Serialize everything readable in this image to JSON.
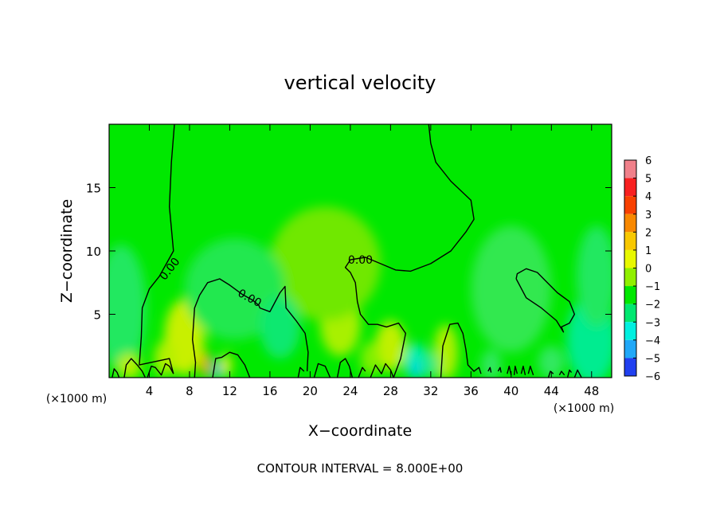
{
  "chart_data": {
    "type": "heatmap",
    "title": "vertical velocity",
    "xlabel": "X−coordinate",
    "ylabel": "Z−coordinate",
    "x_unit_left": "(×1000 m)",
    "x_unit_right": "(×1000 m)",
    "footer": "CONTOUR INTERVAL = 8.000E+00",
    "xlim": [
      0,
      50
    ],
    "ylim": [
      0,
      20
    ],
    "xticks": [
      4,
      8,
      12,
      16,
      20,
      24,
      28,
      32,
      36,
      40,
      44,
      48
    ],
    "yticks": [
      5,
      10,
      15
    ],
    "contour_labels": [
      {
        "text": "0.00",
        "x": 6.0,
        "y": 8.6,
        "angle": -52
      },
      {
        "text": "0.00",
        "x": 14.0,
        "y": 6.3,
        "angle": 28
      },
      {
        "text": "0.00",
        "x": 25.0,
        "y": 9.3,
        "angle": 0
      }
    ],
    "colorbar": {
      "levels": [
        "6",
        "5",
        "4",
        "3",
        "2",
        "1",
        "0",
        "−1",
        "−2",
        "−3",
        "−4",
        "−5",
        "−6"
      ],
      "colors": [
        "#f0808a",
        "#f82020",
        "#f84000",
        "#f88800",
        "#f8c800",
        "#e8f800",
        "#90f000",
        "#00e800",
        "#00e870",
        "#00f0e0",
        "#20a8f8",
        "#2040f0",
        "#1010b0",
        "#8000c0"
      ]
    },
    "blobs": [
      {
        "x": 7.5,
        "y": 3.2,
        "rx": 0.9,
        "ry": 1.8,
        "level": "3",
        "color": "#f88800"
      },
      {
        "x": 7.5,
        "y": 3.2,
        "rx": 2.0,
        "ry": 3.0,
        "level": "1",
        "color": "#c8f000"
      },
      {
        "x": 9.6,
        "y": 1.0,
        "rx": 0.5,
        "ry": 1.0,
        "level": "2",
        "color": "#f8a800"
      },
      {
        "x": 11.6,
        "y": 1.0,
        "rx": 0.6,
        "ry": 0.9,
        "level": "1",
        "color": "#d8f000"
      },
      {
        "x": 23.0,
        "y": 4.2,
        "rx": 2.0,
        "ry": 2.5,
        "level": "1",
        "color": "#a8f000"
      },
      {
        "x": 21.5,
        "y": 9.0,
        "rx": 5.5,
        "ry": 4.5,
        "level": "0.5",
        "color": "#70e800"
      },
      {
        "x": 28.0,
        "y": 2.5,
        "rx": 1.5,
        "ry": 2.0,
        "level": "1",
        "color": "#c0f000"
      },
      {
        "x": 33.5,
        "y": 2.0,
        "rx": 1.2,
        "ry": 2.2,
        "level": "1",
        "color": "#b0f000"
      },
      {
        "x": 12.5,
        "y": 7.0,
        "rx": 5.0,
        "ry": 4.0,
        "level": "-0.5",
        "color": "#20e850"
      },
      {
        "x": 1.2,
        "y": 5.5,
        "rx": 2.5,
        "ry": 5.0,
        "level": "-0.5",
        "color": "#20e860"
      },
      {
        "x": 48.0,
        "y": 3.0,
        "rx": 2.5,
        "ry": 3.5,
        "level": "-1",
        "color": "#00ec90"
      },
      {
        "x": 48.5,
        "y": 8.0,
        "rx": 2.0,
        "ry": 4.0,
        "level": "-0.5",
        "color": "#20e860"
      },
      {
        "x": 40.0,
        "y": 7.0,
        "rx": 4.0,
        "ry": 5.0,
        "level": "-0.5",
        "color": "#30e850"
      },
      {
        "x": 17.0,
        "y": 4.0,
        "rx": 2.0,
        "ry": 2.5,
        "level": "-0.5",
        "color": "#10e870"
      },
      {
        "x": 30.5,
        "y": 1.3,
        "rx": 1.2,
        "ry": 1.4,
        "level": "-1",
        "color": "#00eeb0"
      },
      {
        "x": 30.5,
        "y": 0.6,
        "rx": 0.4,
        "ry": 0.6,
        "level": "-2",
        "color": "#00c8f0"
      },
      {
        "x": 10.7,
        "y": 0.6,
        "rx": 0.35,
        "ry": 0.7,
        "level": "-2",
        "color": "#10b0f8"
      },
      {
        "x": 2.0,
        "y": 0.9,
        "rx": 1.2,
        "ry": 1.0,
        "level": "1",
        "color": "#b8f000"
      },
      {
        "x": 5.5,
        "y": 1.5,
        "rx": 1.0,
        "ry": 1.4,
        "level": "1",
        "color": "#b0f000"
      },
      {
        "x": 26.0,
        "y": 1.5,
        "rx": 1.0,
        "ry": 1.3,
        "level": "0.5",
        "color": "#80f000"
      },
      {
        "x": 32.0,
        "y": 1.0,
        "rx": 0.8,
        "ry": 1.0,
        "level": "-0.5",
        "color": "#20ea80"
      },
      {
        "x": 38.0,
        "y": 1.0,
        "rx": 1.0,
        "ry": 1.2,
        "level": "-0.5",
        "color": "#30e860"
      },
      {
        "x": 44.0,
        "y": 1.2,
        "rx": 1.3,
        "ry": 1.3,
        "level": "-0.5",
        "color": "#30e860"
      }
    ],
    "contours": [
      [
        [
          0.3,
          0.0
        ],
        [
          0.5,
          0.7
        ],
        [
          0.8,
          0.4
        ],
        [
          1.0,
          0.0
        ]
      ],
      [
        [
          1.5,
          0.0
        ],
        [
          1.7,
          1.0
        ],
        [
          2.2,
          1.5
        ],
        [
          2.8,
          1.0
        ],
        [
          3.3,
          0.5
        ],
        [
          3.6,
          0.0
        ]
      ],
      [
        [
          3.8,
          0.0
        ],
        [
          4.2,
          0.9
        ],
        [
          4.6,
          0.8
        ],
        [
          5.2,
          0.2
        ],
        [
          5.6,
          1.1
        ],
        [
          6.0,
          0.9
        ],
        [
          6.4,
          0.3
        ]
      ],
      [
        [
          6.4,
          0.3
        ],
        [
          6.0,
          1.5
        ],
        [
          3.0,
          1.0
        ],
        [
          3.2,
          3.2
        ],
        [
          3.3,
          5.5
        ],
        [
          4.0,
          7.0
        ],
        [
          5.0,
          8.0
        ],
        [
          6.4,
          10.0
        ],
        [
          6.0,
          13.5
        ],
        [
          6.2,
          17.0
        ],
        [
          6.5,
          20.0
        ]
      ],
      [
        [
          8.5,
          0.0
        ],
        [
          8.6,
          1.2
        ],
        [
          8.3,
          3.0
        ],
        [
          8.5,
          5.5
        ],
        [
          9.0,
          6.5
        ],
        [
          9.8,
          7.5
        ],
        [
          11.0,
          7.8
        ],
        [
          12.0,
          7.3
        ],
        [
          13.2,
          6.6
        ],
        [
          14.3,
          6.1
        ],
        [
          14.9,
          5.7
        ],
        [
          15.0,
          5.5
        ],
        [
          16.0,
          5.2
        ],
        [
          17.0,
          6.7
        ],
        [
          17.5,
          7.2
        ],
        [
          17.6,
          5.5
        ],
        [
          18.6,
          4.5
        ],
        [
          19.5,
          3.5
        ],
        [
          19.8,
          2.0
        ],
        [
          19.7,
          0.5
        ]
      ],
      [
        [
          10.3,
          0.0
        ],
        [
          10.6,
          1.5
        ],
        [
          11.2,
          1.6
        ],
        [
          12.0,
          2.0
        ],
        [
          12.8,
          1.8
        ],
        [
          13.5,
          1.0
        ],
        [
          14.0,
          0.0
        ]
      ],
      [
        [
          18.8,
          0.0
        ],
        [
          19.0,
          0.8
        ],
        [
          19.4,
          0.5
        ]
      ],
      [
        [
          20.4,
          0.0
        ],
        [
          20.8,
          1.1
        ],
        [
          21.5,
          0.9
        ],
        [
          22.0,
          0.0
        ]
      ],
      [
        [
          22.7,
          0.0
        ],
        [
          23.0,
          1.2
        ],
        [
          23.5,
          1.5
        ],
        [
          23.9,
          0.9
        ],
        [
          24.2,
          0.0
        ]
      ],
      [
        [
          24.8,
          0.0
        ],
        [
          25.2,
          0.8
        ],
        [
          25.5,
          0.5
        ]
      ],
      [
        [
          26.0,
          0.0
        ],
        [
          26.5,
          1.0
        ],
        [
          27.1,
          0.3
        ],
        [
          27.5,
          1.1
        ],
        [
          28.0,
          0.6
        ],
        [
          28.3,
          0.0
        ],
        [
          29.0,
          1.5
        ],
        [
          29.5,
          3.5
        ],
        [
          28.8,
          4.3
        ],
        [
          27.6,
          4.0
        ],
        [
          26.7,
          4.2
        ],
        [
          25.8,
          4.2
        ],
        [
          25.0,
          5.0
        ],
        [
          24.7,
          6.0
        ],
        [
          24.5,
          7.5
        ],
        [
          24.0,
          8.3
        ],
        [
          23.5,
          8.7
        ],
        [
          24.0,
          9.3
        ],
        [
          25.5,
          9.5
        ],
        [
          27.0,
          9.0
        ],
        [
          28.5,
          8.5
        ],
        [
          30.0,
          8.4
        ],
        [
          32.0,
          9.0
        ],
        [
          34.0,
          10.0
        ],
        [
          35.5,
          11.5
        ],
        [
          36.3,
          12.5
        ],
        [
          36.0,
          14.0
        ],
        [
          34.0,
          15.5
        ],
        [
          32.5,
          17.0
        ],
        [
          32.0,
          18.5
        ],
        [
          31.8,
          20.0
        ]
      ],
      [
        [
          33.0,
          0.0
        ],
        [
          33.2,
          2.5
        ],
        [
          33.9,
          4.2
        ],
        [
          34.7,
          4.3
        ],
        [
          35.2,
          3.5
        ],
        [
          35.5,
          2.2
        ],
        [
          35.7,
          1.0
        ],
        [
          36.3,
          0.5
        ],
        [
          36.8,
          0.8
        ],
        [
          37.0,
          0.3
        ]
      ],
      [
        [
          37.7,
          0.5
        ],
        [
          37.9,
          0.8
        ],
        [
          38.0,
          0.4
        ]
      ],
      [
        [
          38.7,
          0.5
        ],
        [
          38.9,
          0.8
        ],
        [
          39.0,
          0.4
        ]
      ],
      [
        [
          39.6,
          0.3
        ],
        [
          39.8,
          0.9
        ],
        [
          40.0,
          0.2
        ]
      ],
      [
        [
          40.3,
          0.2
        ],
        [
          40.4,
          0.9
        ],
        [
          40.6,
          0.3
        ]
      ],
      [
        [
          41.0,
          0.3
        ],
        [
          41.2,
          0.9
        ],
        [
          41.4,
          0.2
        ]
      ],
      [
        [
          41.7,
          0.3
        ],
        [
          41.9,
          0.9
        ],
        [
          42.2,
          0.2
        ]
      ],
      [
        [
          43.7,
          0.0
        ],
        [
          43.9,
          0.5
        ],
        [
          44.2,
          0.3
        ]
      ],
      [
        [
          44.8,
          0.2
        ],
        [
          45.0,
          0.5
        ],
        [
          45.3,
          0.2
        ]
      ],
      [
        [
          45.6,
          0.0
        ],
        [
          45.8,
          0.6
        ],
        [
          46.0,
          0.4
        ]
      ],
      [
        [
          46.3,
          0.0
        ],
        [
          46.6,
          0.6
        ],
        [
          47.0,
          0.0
        ]
      ],
      [
        [
          40.5,
          7.8
        ],
        [
          40.6,
          8.2
        ],
        [
          41.5,
          8.6
        ],
        [
          42.6,
          8.3
        ],
        [
          43.6,
          7.5
        ],
        [
          44.6,
          6.7
        ],
        [
          45.8,
          6.0
        ],
        [
          46.3,
          5.0
        ],
        [
          45.8,
          4.3
        ],
        [
          45.0,
          4.0
        ],
        [
          45.2,
          3.6
        ],
        [
          44.5,
          4.5
        ],
        [
          43.0,
          5.5
        ],
        [
          41.5,
          6.3
        ],
        [
          40.5,
          7.8
        ]
      ]
    ]
  }
}
